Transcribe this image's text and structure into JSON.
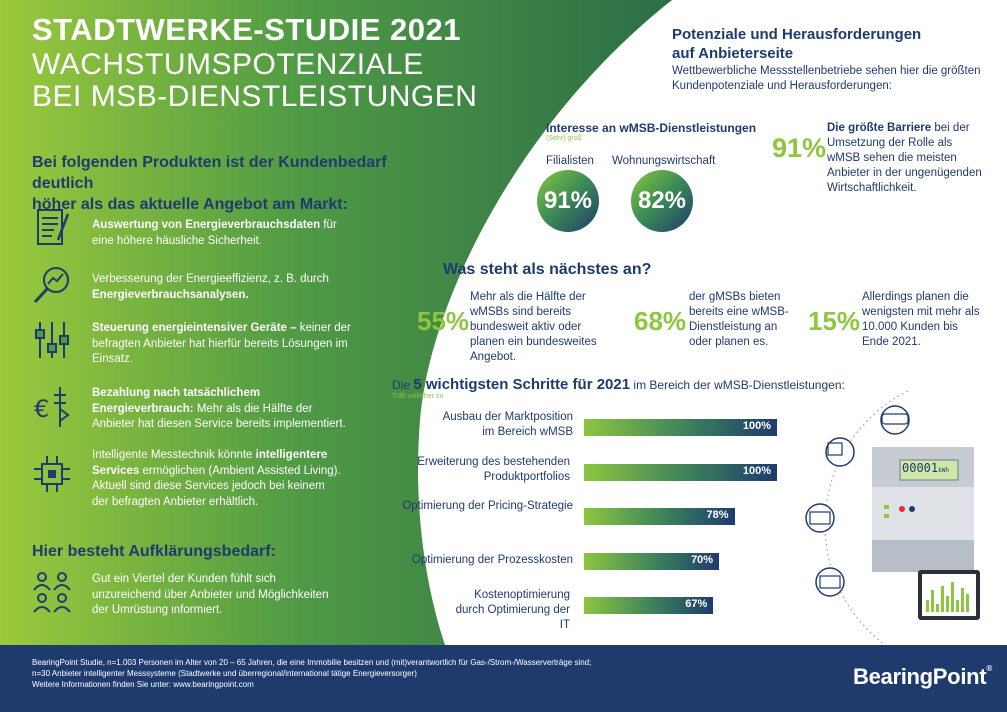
{
  "header": {
    "title": "STADTWERKE-STUDIE 2021",
    "subtitle_line1": "WACHSTUMSPOTENZIALE",
    "subtitle_line2": "BEI MSB-DIENSTLEISTUNGEN"
  },
  "products": {
    "heading_line1": "Bei folgenden Produkten ist der Kundenbedarf deutlich",
    "heading_line2": "höher als das aktuelle Angebot am Markt:",
    "items": [
      {
        "bold": "Auswertung von Energieverbrauchsdaten",
        "text": " für eine höhere häusliche Sicherheit.",
        "icon": "document-pen-icon"
      },
      {
        "pre": "Verbesserung der Energieeffizienz, z. B. durch ",
        "bold": "Energieverbrauchsanalysen.",
        "icon": "magnifier-chart-icon"
      },
      {
        "bold": "Steuerung energieintensiver Geräte –",
        "text": " keiner der befragten Anbieter hat hierfür bereits Lösungen im Einsatz.",
        "icon": "sliders-icon"
      },
      {
        "bold": "Bezahlung nach tatsächlichem Energieverbrauch:",
        "text": " Mehr als die Hälfte der Anbieter hat diesen Service bereits implementiert.",
        "icon": "euro-power-icon"
      },
      {
        "pre": "Intelligente Messtechnik könnte ",
        "bold": "intelligentere Services",
        "text": " ermöglichen (Ambient Assisted Living). Aktuell sind diese Services jedoch bei keinem der befragten Anbieter erhältlich.",
        "icon": "chip-icon"
      }
    ],
    "clarification_heading": "Hier besteht Aufklärungsbedarf:",
    "clarification_text": "Gut ein Viertel der Kunden fühlt sich unzureichend über Anbieter und Möglichkeiten der Umrüstung informiert.",
    "clarification_icon": "people-icon"
  },
  "potentials": {
    "heading_line1": "Potenziale und Herausforderungen",
    "heading_line2": "auf Anbieterseite",
    "intro_line1": "Wettbewerbliche Messstellenbetriebe sehen hier die größten",
    "intro_line2": "Kundenpotenziale und Herausforderungen:",
    "interest_heading": "Interesse an wMSB-Dienstleistungen",
    "interest_note": "(Sehr) groß",
    "interest": [
      {
        "label": "Filialisten",
        "value": "91%"
      },
      {
        "label": "Wohnungswirtschaft",
        "value": "82%"
      }
    ],
    "barrier_value": "91%",
    "barrier_bold": "Die größte Barriere",
    "barrier_text": " bei der Umsetzung der Rolle als wMSB sehen die meisten Anbieter in der ungenügenden Wirtschaftlichkeit."
  },
  "next": {
    "heading": "Was steht als nächstes an?",
    "stats": [
      {
        "value": "55%",
        "text": "Mehr als die Hälfte der wMSBs sind bereits bundesweit aktiv oder planen ein bundesweites Angebot."
      },
      {
        "value": "68%",
        "text": "der gMSBs bieten bereits eine wMSB-Dienstleistung an oder planen es."
      },
      {
        "value": "15%",
        "text": "Allerdings planen die wenigsten mit mehr als 10.000 Kunden bis Ende 2021."
      }
    ]
  },
  "steps": {
    "heading_pre": "Die ",
    "heading_bold": "5 wichtigsten Schritte für 2021",
    "heading_post": " im Bereich der wMSB-Dienstleistungen:",
    "note": "Trifft voll/eher zu"
  },
  "chart_data": {
    "type": "bar",
    "orientation": "horizontal",
    "categories": [
      "Ausbau der Marktposition im Bereich wMSB",
      "Erweiterung des bestehenden Produktportfolios",
      "Optimierung der Pricing-Strategie",
      "Optimierung der Prozesskosten",
      "Kostenoptimierung durch Optimierung der IT"
    ],
    "values": [
      100,
      100,
      78,
      70,
      67
    ],
    "value_labels": [
      "100%",
      "100%",
      "78%",
      "70%",
      "67%"
    ],
    "xlim": [
      0,
      100
    ]
  },
  "meter": {
    "display": "00001",
    "unit": "kWh"
  },
  "footer": {
    "line1": "BearingPoint Studie, n=1.003 Personen im Alter von 20 – 65 Jahren, die eine Immobilie besitzen und (mit)verantwortlich für Gas-/Strom-/Wasserverträge sind;",
    "line2": "n=30 Anbieter intelligenter Messsysteme (Stadtwerke und überregional/international tätige Energieversorger)",
    "line3": "Weitere Informationen finden Sie unter: www.bearingpoint.com",
    "logo": "BearingPoint",
    "logo_mark": "®"
  },
  "colors": {
    "navy": "#1f3b6e",
    "green": "#8dc63f",
    "mid_green": "#3e8f54"
  }
}
